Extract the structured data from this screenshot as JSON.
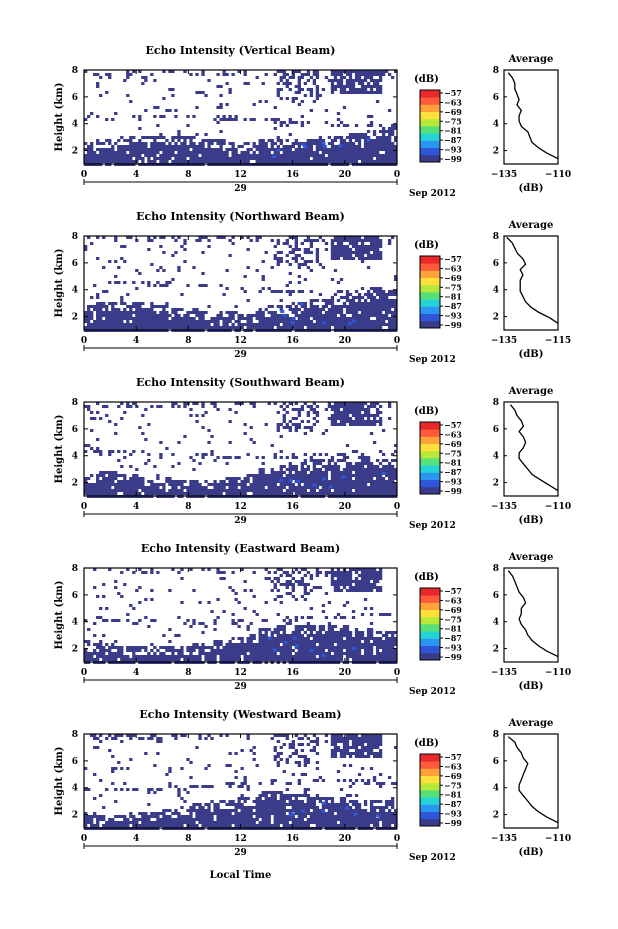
{
  "figure": {
    "xlabel": "Local Time",
    "date_tick": "29",
    "date_label": "Sep 2012",
    "x_ticks": [
      "0",
      "4",
      "8",
      "12",
      "16",
      "20",
      "0"
    ],
    "y_ticks": [
      "2",
      "4",
      "6",
      "8"
    ],
    "ylabel": "Height (km)",
    "colorbar_title": "(dB)",
    "colorbar_ticks": [
      "−57",
      "−63",
      "−69",
      "−75",
      "−81",
      "−87",
      "−93",
      "−99"
    ],
    "colorbar_colors": [
      "#3a3c8a",
      "#2f55d8",
      "#2a96f0",
      "#25d2d6",
      "#55e07a",
      "#b8e83a",
      "#ffe03a",
      "#ffa23a",
      "#ff5a3a",
      "#e8282a"
    ],
    "fill_color": "#3a3c8a",
    "avg_title": "Average",
    "avg_xlabel": "(dB)",
    "avg_yticks": [
      "2",
      "4",
      "6",
      "8"
    ]
  },
  "chart_data": [
    {
      "type": "heatmap",
      "title": "Echo Intensity (Vertical Beam)",
      "x_range_hours": [
        0,
        24
      ],
      "y_range_km": [
        1,
        8
      ],
      "profile_xticks": [
        "−135",
        "−110"
      ],
      "profile_xlim": [
        -135,
        -110
      ],
      "profile": [
        [
          1.4,
          -110
        ],
        [
          1.8,
          -115
        ],
        [
          2.2,
          -119
        ],
        [
          2.6,
          -122
        ],
        [
          3.0,
          -123
        ],
        [
          3.4,
          -124
        ],
        [
          3.8,
          -127
        ],
        [
          4.2,
          -128
        ],
        [
          4.6,
          -128
        ],
        [
          5.0,
          -127
        ],
        [
          5.4,
          -129
        ],
        [
          5.8,
          -128
        ],
        [
          6.2,
          -129
        ],
        [
          6.6,
          -130
        ],
        [
          7.0,
          -130
        ],
        [
          7.4,
          -131
        ],
        [
          7.8,
          -133
        ]
      ]
    },
    {
      "type": "heatmap",
      "title": "Echo Intensity (Northward Beam)",
      "x_range_hours": [
        0,
        24
      ],
      "y_range_km": [
        1,
        8
      ],
      "profile_xticks": [
        "−135",
        "−115"
      ],
      "profile_xlim": [
        -135,
        -115
      ],
      "profile": [
        [
          1.5,
          -115
        ],
        [
          1.9,
          -118
        ],
        [
          2.3,
          -122
        ],
        [
          2.7,
          -125
        ],
        [
          3.1,
          -127
        ],
        [
          3.5,
          -128
        ],
        [
          3.9,
          -129
        ],
        [
          4.3,
          -129
        ],
        [
          4.7,
          -129
        ],
        [
          5.1,
          -128
        ],
        [
          5.5,
          -129
        ],
        [
          5.9,
          -127
        ],
        [
          6.3,
          -128
        ],
        [
          6.7,
          -130
        ],
        [
          7.1,
          -131
        ],
        [
          7.5,
          -132
        ],
        [
          7.9,
          -134
        ]
      ]
    },
    {
      "type": "heatmap",
      "title": "Echo Intensity (Southward Beam)",
      "x_range_hours": [
        0,
        24
      ],
      "y_range_km": [
        1,
        8
      ],
      "profile_xticks": [
        "−135",
        "−110"
      ],
      "profile_xlim": [
        -135,
        -110
      ],
      "profile": [
        [
          1.4,
          -110
        ],
        [
          1.8,
          -114
        ],
        [
          2.2,
          -118
        ],
        [
          2.6,
          -122
        ],
        [
          3.0,
          -124
        ],
        [
          3.4,
          -126
        ],
        [
          3.8,
          -128
        ],
        [
          4.2,
          -128
        ],
        [
          4.6,
          -126
        ],
        [
          5.0,
          -125
        ],
        [
          5.4,
          -126
        ],
        [
          5.8,
          -128
        ],
        [
          6.2,
          -126
        ],
        [
          6.6,
          -127
        ],
        [
          7.0,
          -129
        ],
        [
          7.4,
          -130
        ],
        [
          7.8,
          -132
        ]
      ]
    },
    {
      "type": "heatmap",
      "title": "Echo Intensity (Eastward Beam)",
      "x_range_hours": [
        0,
        24
      ],
      "y_range_km": [
        1,
        8
      ],
      "profile_xticks": [
        "−135",
        "−110"
      ],
      "profile_xlim": [
        -135,
        -110
      ],
      "profile": [
        [
          1.4,
          -110
        ],
        [
          1.8,
          -115
        ],
        [
          2.2,
          -119
        ],
        [
          2.6,
          -122
        ],
        [
          3.0,
          -124
        ],
        [
          3.4,
          -125
        ],
        [
          3.8,
          -127
        ],
        [
          4.2,
          -128
        ],
        [
          4.6,
          -127
        ],
        [
          5.0,
          -127
        ],
        [
          5.4,
          -125
        ],
        [
          5.8,
          -126
        ],
        [
          6.2,
          -128
        ],
        [
          6.6,
          -129
        ],
        [
          7.0,
          -130
        ],
        [
          7.4,
          -131
        ],
        [
          7.8,
          -133
        ]
      ]
    },
    {
      "type": "heatmap",
      "title": "Echo Intensity (Westward Beam)",
      "x_range_hours": [
        0,
        24
      ],
      "y_range_km": [
        1,
        8
      ],
      "profile_xticks": [
        "−135",
        "−110"
      ],
      "profile_xlim": [
        -135,
        -110
      ],
      "profile": [
        [
          1.4,
          -110
        ],
        [
          1.8,
          -115
        ],
        [
          2.2,
          -119
        ],
        [
          2.6,
          -122
        ],
        [
          3.0,
          -124
        ],
        [
          3.4,
          -126
        ],
        [
          3.8,
          -128
        ],
        [
          4.2,
          -128
        ],
        [
          4.6,
          -127
        ],
        [
          5.0,
          -126
        ],
        [
          5.4,
          -125
        ],
        [
          5.8,
          -124
        ],
        [
          6.2,
          -126
        ],
        [
          6.6,
          -127
        ],
        [
          7.0,
          -129
        ],
        [
          7.4,
          -130
        ],
        [
          7.8,
          -133
        ]
      ]
    }
  ]
}
